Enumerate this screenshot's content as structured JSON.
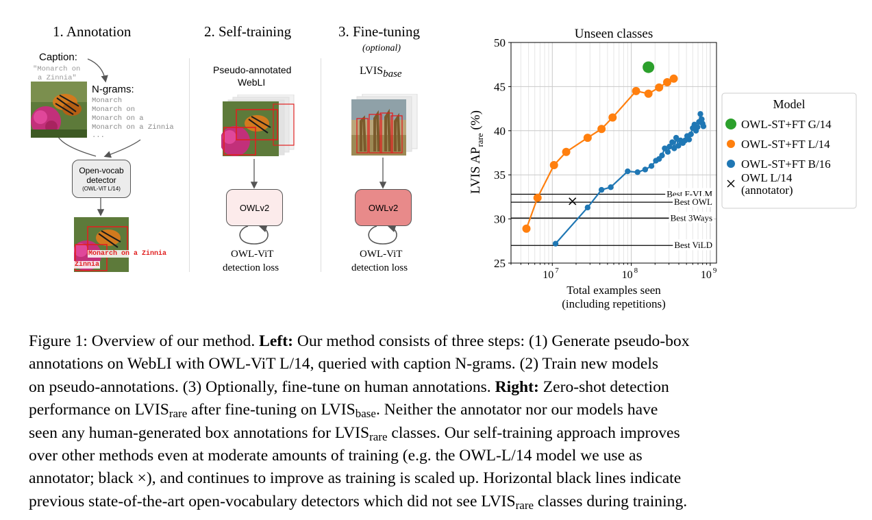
{
  "figure": {
    "steps": [
      {
        "title": "1. Annotation"
      },
      {
        "title": "2. Self-training"
      },
      {
        "title": "3. Fine-tuning",
        "subtitle": "(optional)"
      }
    ],
    "annotation": {
      "caption_label": "Caption:",
      "caption_text_line1": "\"Monarch on",
      "caption_text_line2": "a Zinnia\"",
      "ngrams_label": "N-grams:",
      "ngrams": [
        "Monarch",
        "Monarch on",
        "Monarch on a",
        "Monarch on a Zinnia",
        "..."
      ],
      "detector_line1": "Open-vocab",
      "detector_line2": "detector",
      "detector_sub": "(OWL-ViT L/14)",
      "box_label_1": "Monarch on a Zinnia",
      "box_label_2": "Zinnia"
    },
    "self_training": {
      "data_line1": "Pseudo-annotated",
      "data_line2": "WebLI",
      "model": "OWLv2",
      "loss_line1": "OWL-ViT",
      "loss_line2": "detection loss"
    },
    "fine_tuning": {
      "data_main": "LVIS",
      "data_sub": "base",
      "model": "OWLv2",
      "loss_line1": "OWL-ViT",
      "loss_line2": "detection loss"
    }
  },
  "chart_data": {
    "type": "line",
    "title": "Unseen classes",
    "ylabel_main": "LVIS AP",
    "ylabel_sub": "rare",
    "ylabel_unit": "(%)",
    "xlabel_line1": "Total examples seen",
    "xlabel_line2": "(including repetitions)",
    "xscale": "log",
    "xlim": [
      3000000,
      1200000000
    ],
    "ylim": [
      25,
      50
    ],
    "yticks": [
      25,
      30,
      35,
      40,
      45,
      50
    ],
    "xticks": [
      {
        "value": 10000000,
        "base": "10",
        "exp": "7"
      },
      {
        "value": 100000000,
        "base": "10",
        "exp": "8"
      },
      {
        "value": 1000000000,
        "base": "10",
        "exp": "9"
      }
    ],
    "grid": true,
    "legend_position": "right, outside",
    "legend_title": "Model",
    "series": [
      {
        "name": "OWL-ST+FT G/14",
        "color": "#2ca02c",
        "marker": "large-circle",
        "x": [
          165000000
        ],
        "y": [
          47.2
        ]
      },
      {
        "name": "OWL-ST+FT L/14",
        "color": "#ff7f0e",
        "marker": "circle",
        "x": [
          4700000,
          6500000,
          10500000,
          15000000,
          28000000,
          42000000,
          58000000,
          115000000,
          165000000,
          225000000,
          285000000,
          345000000
        ],
        "y": [
          28.9,
          32.4,
          36.1,
          37.6,
          39.2,
          40.2,
          41.5,
          44.5,
          44.2,
          44.9,
          45.5,
          45.9
        ]
      },
      {
        "name": "OWL-ST+FT B/16",
        "color": "#1f77b4",
        "marker": "circle",
        "x": [
          11000000,
          28000000,
          42000000,
          55000000,
          90000000,
          120000000,
          150000000,
          180000000,
          205000000,
          225000000,
          245000000,
          265000000,
          290000000,
          305000000,
          330000000,
          350000000,
          370000000,
          395000000,
          420000000,
          450000000,
          480000000,
          510000000,
          540000000,
          570000000,
          600000000,
          630000000,
          660000000,
          690000000,
          720000000,
          750000000,
          780000000,
          800000000,
          820000000
        ],
        "y": [
          27.2,
          31.3,
          33.3,
          33.6,
          35.4,
          35.3,
          35.6,
          36.0,
          36.6,
          36.8,
          37.2,
          38.0,
          37.6,
          38.2,
          38.7,
          38.0,
          39.2,
          38.3,
          38.9,
          38.6,
          38.9,
          39.4,
          39.0,
          39.6,
          40.3,
          40.7,
          40.0,
          40.4,
          41.0,
          41.9,
          41.3,
          40.8,
          40.5
        ]
      },
      {
        "name": "OWL L/14 (annotator)",
        "legend_line1": "OWL L/14",
        "legend_line2": "(annotator)",
        "color": "#000000",
        "marker": "x",
        "x": [
          18000000
        ],
        "y": [
          32.0
        ]
      }
    ],
    "reference_lines": [
      {
        "label": "Best F-VLM",
        "y": 32.8
      },
      {
        "label": "Best OWL",
        "y": 31.9
      },
      {
        "label": "Best 3Ways",
        "y": 30.1
      },
      {
        "label": "Best ViLD",
        "y": 27.0
      }
    ]
  },
  "caption": {
    "line1_a": "Figure 1: Overview of our method. ",
    "line1_b": "Left:",
    "line1_c": " Our method consists of three steps: (1) Generate pseudo-box",
    "line2": "annotations on WebLI with OWL-ViT L/14, queried with caption N-grams. (2) Train new models",
    "line3_a": "on pseudo-annotations. (3) Optionally, fine-tune on human annotations. ",
    "line3_b": "Right:",
    "line3_c": " Zero-shot detection",
    "line4_a": "performance on LVIS",
    "line4_sub1": "rare",
    "line4_b": " after fine-tuning on LVIS",
    "line4_sub2": "base",
    "line4_c": ". Neither the annotator nor our models have",
    "line5_a": "seen any human-generated box annotations for LVIS",
    "line5_sub": "rare",
    "line5_b": " classes. Our self-training approach improves",
    "line6": "over other methods even at moderate amounts of training (e.g. the OWL-L/14 model we use as",
    "line7": "annotator; black ×), and continues to improve as training is scaled up. Horizontal black lines indicate",
    "line8_a": "previous state-of-the-art open-vocabulary detectors which did not see LVIS",
    "line8_sub": "rare",
    "line8_b": " classes during training."
  }
}
